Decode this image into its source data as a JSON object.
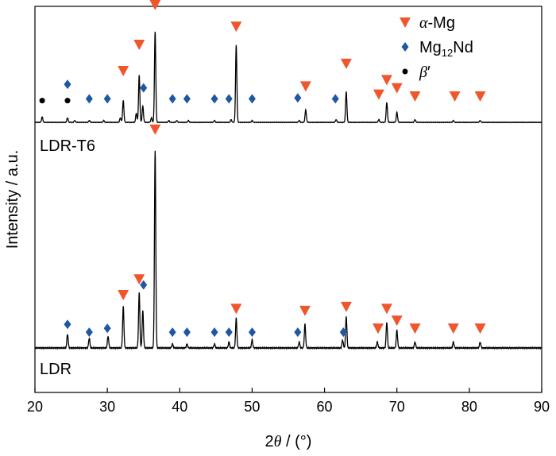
{
  "chart_data": {
    "type": "line",
    "xlabel_prefix": "2",
    "xlabel_theta": "θ",
    "xlabel_suffix": " / (°)",
    "ylabel": "Intensity / a.u.",
    "xlim": [
      20,
      90
    ],
    "x_ticks": [
      "20",
      "30",
      "40",
      "50",
      "60",
      "70",
      "80",
      "90"
    ],
    "grid": false,
    "legend_position": "top-right",
    "colors": {
      "alpha_mg": "#f0562c",
      "mg12nd": "#1f57a3",
      "beta": "#000000",
      "trace": "#000000"
    },
    "legend": [
      {
        "marker": "triangle-down",
        "color": "#f0562c",
        "pre": "",
        "italic": "α",
        "post": "-Mg",
        "sub": "",
        "tail": ""
      },
      {
        "marker": "diamond",
        "color": "#1f57a3",
        "pre": "Mg",
        "italic": "",
        "post": "",
        "sub": "12",
        "tail": "Nd"
      },
      {
        "marker": "circle",
        "color": "#000000",
        "pre": "",
        "italic": "β",
        "post": "′",
        "sub": "",
        "tail": ""
      }
    ],
    "series": [
      {
        "name": "LDR-T6",
        "baseline": 0.05,
        "peaks": [
          {
            "x": 21.0,
            "h": 0.06
          },
          {
            "x": 24.5,
            "h": 0.05
          },
          {
            "x": 25.5,
            "h": 0.02
          },
          {
            "x": 27.5,
            "h": 0.02
          },
          {
            "x": 29.5,
            "h": 0.02
          },
          {
            "x": 31.8,
            "h": 0.05
          },
          {
            "x": 32.2,
            "h": 0.24
          },
          {
            "x": 34.0,
            "h": 0.1
          },
          {
            "x": 34.4,
            "h": 0.52
          },
          {
            "x": 34.9,
            "h": 0.18
          },
          {
            "x": 36.1,
            "h": 0.05
          },
          {
            "x": 36.6,
            "h": 1.0
          },
          {
            "x": 38.5,
            "h": 0.02
          },
          {
            "x": 39.6,
            "h": 0.02
          },
          {
            "x": 41.2,
            "h": 0.02
          },
          {
            "x": 44.8,
            "h": 0.02
          },
          {
            "x": 47.1,
            "h": 0.03
          },
          {
            "x": 47.8,
            "h": 0.85
          },
          {
            "x": 50.0,
            "h": 0.02
          },
          {
            "x": 56.5,
            "h": 0.02
          },
          {
            "x": 57.4,
            "h": 0.14
          },
          {
            "x": 61.6,
            "h": 0.03
          },
          {
            "x": 63.0,
            "h": 0.34
          },
          {
            "x": 67.5,
            "h": 0.03
          },
          {
            "x": 68.6,
            "h": 0.22
          },
          {
            "x": 70.0,
            "h": 0.11
          },
          {
            "x": 72.5,
            "h": 0.03
          },
          {
            "x": 77.8,
            "h": 0.02
          },
          {
            "x": 81.5,
            "h": 0.02
          }
        ],
        "markers": [
          {
            "type": "beta",
            "x": 21.0,
            "y": 0.24
          },
          {
            "type": "beta",
            "x": 24.5,
            "y": 0.24
          },
          {
            "type": "mg12nd",
            "x": 24.5,
            "y": 0.42
          },
          {
            "type": "mg12nd",
            "x": 27.5,
            "y": 0.26
          },
          {
            "type": "mg12nd",
            "x": 30.0,
            "y": 0.26
          },
          {
            "type": "alpha",
            "x": 32.2,
            "y": 0.57
          },
          {
            "type": "alpha",
            "x": 34.4,
            "y": 0.86
          },
          {
            "type": "mg12nd",
            "x": 35.0,
            "y": 0.38
          },
          {
            "type": "alpha",
            "x": 36.6,
            "y": 1.3
          },
          {
            "type": "mg12nd",
            "x": 39.0,
            "y": 0.26
          },
          {
            "type": "mg12nd",
            "x": 41.0,
            "y": 0.26
          },
          {
            "type": "mg12nd",
            "x": 44.8,
            "y": 0.26
          },
          {
            "type": "mg12nd",
            "x": 46.8,
            "y": 0.26
          },
          {
            "type": "alpha",
            "x": 47.8,
            "y": 1.06
          },
          {
            "type": "mg12nd",
            "x": 50.0,
            "y": 0.26
          },
          {
            "type": "mg12nd",
            "x": 56.3,
            "y": 0.27
          },
          {
            "type": "alpha",
            "x": 57.4,
            "y": 0.4
          },
          {
            "type": "mg12nd",
            "x": 61.5,
            "y": 0.26
          },
          {
            "type": "alpha",
            "x": 63.0,
            "y": 0.65
          },
          {
            "type": "alpha",
            "x": 67.5,
            "y": 0.31
          },
          {
            "type": "alpha",
            "x": 68.6,
            "y": 0.47
          },
          {
            "type": "alpha",
            "x": 70.0,
            "y": 0.38
          },
          {
            "type": "alpha",
            "x": 72.5,
            "y": 0.29
          },
          {
            "type": "alpha",
            "x": 78.0,
            "y": 0.29
          },
          {
            "type": "alpha",
            "x": 81.5,
            "y": 0.29
          }
        ]
      },
      {
        "name": "LDR",
        "baseline": 0.03,
        "peaks": [
          {
            "x": 24.5,
            "h": 0.07
          },
          {
            "x": 27.5,
            "h": 0.05
          },
          {
            "x": 30.1,
            "h": 0.06
          },
          {
            "x": 32.2,
            "h": 0.21
          },
          {
            "x": 34.4,
            "h": 0.28
          },
          {
            "x": 34.9,
            "h": 0.19
          },
          {
            "x": 36.6,
            "h": 1.0
          },
          {
            "x": 39.0,
            "h": 0.02
          },
          {
            "x": 41.0,
            "h": 0.02
          },
          {
            "x": 44.8,
            "h": 0.02
          },
          {
            "x": 46.8,
            "h": 0.03
          },
          {
            "x": 47.8,
            "h": 0.15
          },
          {
            "x": 50.0,
            "h": 0.04
          },
          {
            "x": 56.5,
            "h": 0.03
          },
          {
            "x": 57.3,
            "h": 0.12
          },
          {
            "x": 62.5,
            "h": 0.04
          },
          {
            "x": 63.0,
            "h": 0.16
          },
          {
            "x": 67.3,
            "h": 0.03
          },
          {
            "x": 68.6,
            "h": 0.13
          },
          {
            "x": 70.0,
            "h": 0.09
          },
          {
            "x": 72.5,
            "h": 0.03
          },
          {
            "x": 77.8,
            "h": 0.03
          },
          {
            "x": 81.5,
            "h": 0.03
          }
        ],
        "markers": [
          {
            "type": "mg12nd",
            "x": 24.5,
            "y": 0.12
          },
          {
            "type": "mg12nd",
            "x": 27.5,
            "y": 0.08
          },
          {
            "type": "mg12nd",
            "x": 30.0,
            "y": 0.1
          },
          {
            "type": "alpha",
            "x": 32.2,
            "y": 0.27
          },
          {
            "type": "alpha",
            "x": 34.4,
            "y": 0.35
          },
          {
            "type": "mg12nd",
            "x": 35.0,
            "y": 0.32
          },
          {
            "type": "alpha",
            "x": 36.6,
            "y": 1.11
          },
          {
            "type": "mg12nd",
            "x": 39.0,
            "y": 0.08
          },
          {
            "type": "mg12nd",
            "x": 41.0,
            "y": 0.08
          },
          {
            "type": "mg12nd",
            "x": 44.8,
            "y": 0.08
          },
          {
            "type": "mg12nd",
            "x": 46.8,
            "y": 0.08
          },
          {
            "type": "alpha",
            "x": 47.8,
            "y": 0.2
          },
          {
            "type": "mg12nd",
            "x": 50.0,
            "y": 0.08
          },
          {
            "type": "mg12nd",
            "x": 56.3,
            "y": 0.08
          },
          {
            "type": "alpha",
            "x": 57.3,
            "y": 0.19
          },
          {
            "type": "mg12nd",
            "x": 62.6,
            "y": 0.08
          },
          {
            "type": "alpha",
            "x": 63.0,
            "y": 0.21
          },
          {
            "type": "alpha",
            "x": 67.4,
            "y": 0.1
          },
          {
            "type": "alpha",
            "x": 68.6,
            "y": 0.2
          },
          {
            "type": "alpha",
            "x": 70.0,
            "y": 0.14
          },
          {
            "type": "alpha",
            "x": 72.5,
            "y": 0.1
          },
          {
            "type": "alpha",
            "x": 77.8,
            "y": 0.1
          },
          {
            "type": "alpha",
            "x": 81.5,
            "y": 0.1
          }
        ]
      }
    ]
  }
}
